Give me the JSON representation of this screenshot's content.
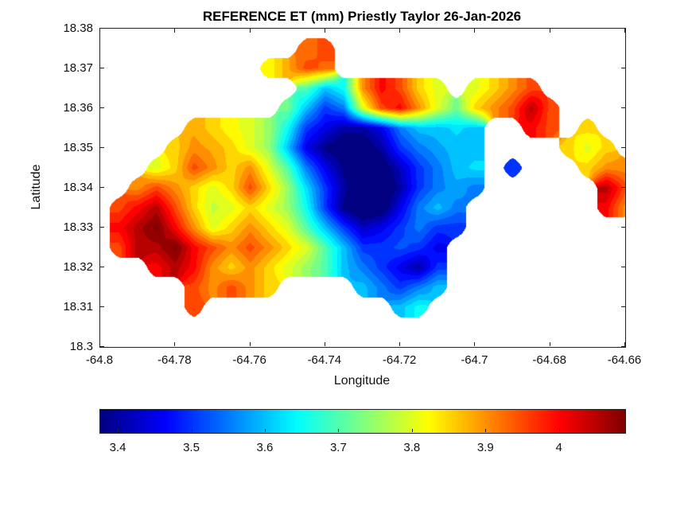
{
  "figure": {
    "background": "#ffffff",
    "axis_color": "#222222"
  },
  "chart_data": {
    "type": "heatmap",
    "title": "REFERENCE ET (mm) Priestly Taylor 26-Jan-2026",
    "xlabel": "Longitude",
    "ylabel": "Latitude",
    "xlim": [
      -64.8,
      -64.66
    ],
    "ylim": [
      18.3,
      18.38
    ],
    "grid_on": false,
    "colormap": "jet",
    "caxis": [
      3.375,
      4.089
    ],
    "contour_step": 0.025,
    "xticks": [
      {
        "v": -64.8,
        "label": "-64.8"
      },
      {
        "v": -64.78,
        "label": "-64.78"
      },
      {
        "v": -64.76,
        "label": "-64.76"
      },
      {
        "v": -64.74,
        "label": "-64.74"
      },
      {
        "v": -64.72,
        "label": "-64.72"
      },
      {
        "v": -64.7,
        "label": "-64.7"
      },
      {
        "v": -64.68,
        "label": "-64.68"
      },
      {
        "v": -64.66,
        "label": "-64.66"
      }
    ],
    "yticks": [
      {
        "v": 18.3,
        "label": "18.3"
      },
      {
        "v": 18.31,
        "label": "18.31"
      },
      {
        "v": 18.32,
        "label": "18.32"
      },
      {
        "v": 18.33,
        "label": "18.33"
      },
      {
        "v": 18.34,
        "label": "18.34"
      },
      {
        "v": 18.35,
        "label": "18.35"
      },
      {
        "v": 18.36,
        "label": "18.36"
      },
      {
        "v": 18.37,
        "label": "18.37"
      },
      {
        "v": 18.38,
        "label": "18.38"
      }
    ],
    "colorbar": {
      "position": "bottom",
      "ticks": [
        {
          "v": 3.4,
          "label": "3.4"
        },
        {
          "v": 3.5,
          "label": "3.5"
        },
        {
          "v": 3.6,
          "label": "3.6"
        },
        {
          "v": 3.7,
          "label": "3.7"
        },
        {
          "v": 3.8,
          "label": "3.8"
        },
        {
          "v": 3.9,
          "label": "3.9"
        },
        {
          "v": 4.0,
          "label": "4"
        }
      ]
    },
    "grid": {
      "comment": "Estimated reference-ET values (mm) on a 0.005-deg grid over the island; null = sea/no data. Rows run north (18.375) to south (18.305); cols run west (-64.795) to east (-64.655).",
      "lon_start": -64.795,
      "lon_step": 0.005,
      "lat_start": 18.375,
      "lat_step": -0.005,
      "values": [
        [
          null,
          null,
          null,
          null,
          null,
          null,
          null,
          null,
          null,
          null,
          3.92,
          3.95,
          null,
          null,
          null,
          null,
          null,
          null,
          null,
          null,
          null,
          null,
          null,
          null,
          null,
          null,
          null,
          null,
          null
        ],
        [
          null,
          null,
          null,
          null,
          null,
          null,
          null,
          null,
          3.82,
          3.88,
          3.95,
          3.93,
          null,
          null,
          null,
          null,
          null,
          null,
          null,
          null,
          null,
          null,
          null,
          null,
          null,
          null,
          null,
          null,
          null
        ],
        [
          null,
          null,
          null,
          null,
          null,
          null,
          null,
          null,
          null,
          null,
          3.7,
          3.6,
          3.65,
          3.9,
          4.0,
          3.95,
          3.85,
          3.8,
          null,
          3.8,
          3.85,
          3.9,
          3.95,
          null,
          null,
          null,
          null,
          null,
          null
        ],
        [
          null,
          null,
          null,
          null,
          null,
          null,
          null,
          null,
          null,
          3.72,
          3.6,
          3.5,
          3.55,
          3.8,
          3.95,
          4.0,
          3.9,
          3.8,
          3.72,
          3.85,
          3.9,
          3.95,
          4.05,
          3.95,
          null,
          null,
          null,
          null,
          null
        ],
        [
          null,
          null,
          null,
          null,
          3.88,
          3.85,
          3.82,
          3.8,
          3.75,
          3.65,
          3.5,
          3.45,
          3.4,
          3.4,
          3.45,
          3.55,
          3.6,
          3.6,
          3.62,
          3.6,
          null,
          null,
          4.0,
          3.95,
          null,
          3.85,
          null,
          null,
          null
        ],
        [
          null,
          null,
          null,
          3.85,
          3.9,
          3.88,
          3.85,
          3.8,
          3.75,
          3.6,
          3.45,
          3.38,
          3.35,
          3.35,
          3.4,
          3.5,
          3.55,
          3.58,
          3.6,
          3.6,
          null,
          null,
          null,
          null,
          3.85,
          3.8,
          3.85,
          null,
          null
        ],
        [
          null,
          null,
          3.8,
          3.85,
          3.95,
          3.9,
          3.85,
          3.9,
          3.8,
          3.7,
          3.55,
          3.45,
          3.38,
          3.35,
          3.35,
          3.42,
          3.5,
          3.55,
          3.6,
          3.62,
          null,
          3.5,
          null,
          null,
          null,
          3.85,
          3.9,
          3.9,
          null
        ],
        [
          null,
          3.9,
          3.95,
          3.9,
          3.85,
          3.8,
          3.85,
          3.95,
          3.85,
          3.75,
          3.62,
          3.5,
          3.4,
          3.33,
          3.33,
          3.4,
          3.5,
          3.55,
          3.58,
          3.55,
          null,
          null,
          null,
          null,
          null,
          null,
          4.05,
          3.95,
          null
        ],
        [
          3.95,
          4.0,
          4.05,
          3.95,
          3.85,
          3.78,
          3.8,
          3.85,
          3.8,
          3.75,
          3.65,
          3.5,
          3.38,
          3.33,
          3.35,
          3.45,
          3.55,
          3.6,
          3.55,
          null,
          null,
          null,
          null,
          null,
          null,
          null,
          4.0,
          3.9,
          null
        ],
        [
          4.0,
          4.05,
          4.1,
          4.0,
          3.9,
          3.8,
          3.85,
          3.9,
          3.85,
          3.8,
          3.7,
          3.6,
          3.5,
          3.42,
          3.45,
          3.5,
          3.55,
          3.5,
          3.5,
          null,
          null,
          null,
          null,
          null,
          null,
          null,
          null,
          null,
          null
        ],
        [
          3.95,
          4.05,
          4.05,
          4.1,
          4.0,
          3.95,
          3.9,
          3.95,
          3.9,
          3.85,
          3.8,
          3.7,
          3.6,
          3.5,
          3.5,
          3.52,
          3.5,
          3.45,
          null,
          null,
          null,
          null,
          null,
          null,
          null,
          null,
          null,
          null,
          null
        ],
        [
          null,
          null,
          4.0,
          4.05,
          4.0,
          3.9,
          3.85,
          3.9,
          3.85,
          3.8,
          3.75,
          3.7,
          3.6,
          3.55,
          3.5,
          3.45,
          3.4,
          3.5,
          null,
          null,
          null,
          null,
          null,
          null,
          null,
          null,
          null,
          null,
          null
        ],
        [
          null,
          null,
          null,
          null,
          3.95,
          3.9,
          3.95,
          3.9,
          3.85,
          null,
          null,
          null,
          null,
          3.6,
          3.55,
          3.5,
          3.55,
          3.6,
          null,
          null,
          null,
          null,
          null,
          null,
          null,
          null,
          null,
          null,
          null
        ],
        [
          null,
          null,
          null,
          null,
          3.95,
          null,
          null,
          null,
          null,
          null,
          null,
          null,
          null,
          null,
          null,
          3.6,
          3.65,
          null,
          null,
          null,
          null,
          null,
          null,
          null,
          null,
          null,
          null,
          null,
          null
        ],
        [
          null,
          null,
          null,
          null,
          null,
          null,
          null,
          null,
          null,
          null,
          null,
          null,
          null,
          null,
          null,
          null,
          null,
          null,
          null,
          null,
          null,
          null,
          null,
          null,
          null,
          null,
          null,
          null,
          null
        ]
      ]
    }
  }
}
